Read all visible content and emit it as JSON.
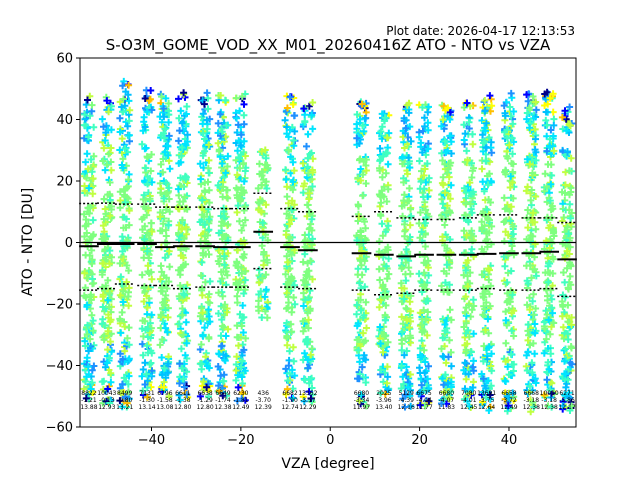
{
  "plot_date": "Plot date: 2026-04-17 12:13:53",
  "chart_data": {
    "type": "scatter",
    "title": "S-O3M_GOME_VOD_XX_M01_20260416Z ATO - NTO vs VZA",
    "xlabel": "VZA [degree]",
    "ylabel": "ATO - NTO [DU]",
    "xlim": [
      -56,
      55
    ],
    "ylim": [
      -60,
      60
    ],
    "xticks": [
      -40,
      -20,
      0,
      20,
      40
    ],
    "yticks": [
      -60,
      -40,
      -20,
      0,
      20,
      40,
      60
    ],
    "grid": false,
    "marker": "+",
    "palette": [
      "#00008b",
      "#0000ff",
      "#1e90ff",
      "#00bfff",
      "#00e5ff",
      "#40ffc0",
      "#7fff7f",
      "#c0ff40",
      "#ffff00",
      "#ffbf00"
    ],
    "zero_line": 0,
    "columns": [
      {
        "vza": -54,
        "count": "8822",
        "mean": "-1.21",
        "std": "13.88",
        "median": -1.2,
        "p_low": -15.5,
        "p_high": 12.7,
        "spread": 50
      },
      {
        "vza": -50,
        "count": "10043",
        "mean": "-0.13",
        "std": "12.93",
        "median": -0.5,
        "p_low": -15.0,
        "p_high": 12.8,
        "spread": 52
      },
      {
        "vza": -46,
        "count": "8499",
        "mean": "-0.80",
        "std": "13.21",
        "median": -0.5,
        "p_low": -13.5,
        "p_high": 12.5,
        "spread": 53
      },
      {
        "vza": -41,
        "count": "7131",
        "mean": "-1.30",
        "std": "13.14",
        "median": -0.5,
        "p_low": -14.0,
        "p_high": 12.5,
        "spread": 50
      },
      {
        "vza": -37,
        "count": "6796",
        "mean": "-1.58",
        "std": "13.08",
        "median": -1.5,
        "p_low": -14.0,
        "p_high": 11.5,
        "spread": 50
      },
      {
        "vza": -33,
        "count": "6611",
        "mean": "-1.38",
        "std": "12.80",
        "median": -1.2,
        "p_low": -15.0,
        "p_high": 11.5,
        "spread": 50
      },
      {
        "vza": -28,
        "count": "6638",
        "mean": "-1.29",
        "std": "12.80",
        "median": -1.2,
        "p_low": -14.5,
        "p_high": 11.5,
        "spread": 50
      },
      {
        "vza": -24,
        "count": "6649",
        "mean": "-1.74",
        "std": "12.38",
        "median": -1.5,
        "p_low": -14.5,
        "p_high": 11.0,
        "spread": 50
      },
      {
        "vza": -20,
        "count": "6230",
        "mean": "-1.81",
        "std": "12.49",
        "median": -1.5,
        "p_low": -14.5,
        "p_high": 11.0,
        "spread": 50
      },
      {
        "vza": -15,
        "count": "436",
        "mean": "-3.70",
        "std": "12.39",
        "median": 3.5,
        "p_low": -8.5,
        "p_high": 16.0,
        "spread": 28
      },
      {
        "vza": -9,
        "count": "6682",
        "mean": "-1.90",
        "std": "12.74",
        "median": -1.5,
        "p_low": -14.5,
        "p_high": 11.0,
        "spread": 50
      },
      {
        "vza": -5,
        "count": "13362",
        "mean": "-3.57",
        "std": "12.29",
        "median": -2.5,
        "p_low": -15.0,
        "p_high": 10.0,
        "spread": 50
      },
      {
        "vza": 7,
        "count": "6680",
        "mean": "-3.34",
        "std": "11.97",
        "median": -3.5,
        "p_low": -15.5,
        "p_high": 8.5,
        "spread": 50
      },
      {
        "vza": 12,
        "count": "2025",
        "mean": "-3.96",
        "std": "13.40",
        "median": -4.0,
        "p_low": -17.0,
        "p_high": 10.0,
        "spread": 46
      },
      {
        "vza": 17,
        "count": "5129",
        "mean": "-4.39",
        "std": "12.16",
        "median": -4.5,
        "p_low": -16.5,
        "p_high": 8.0,
        "spread": 50
      },
      {
        "vza": 21,
        "count": "6675",
        "mean": "-4.04",
        "std": "11.77",
        "median": -4.0,
        "p_low": -15.5,
        "p_high": 7.5,
        "spread": 50
      },
      {
        "vza": 26,
        "count": "6680",
        "mean": "-4.07",
        "std": "11.83",
        "median": -4.0,
        "p_low": -15.5,
        "p_high": 7.5,
        "spread": 50
      },
      {
        "vza": 31,
        "count": "7080",
        "mean": "-4.01",
        "std": "12.45",
        "median": -4.0,
        "p_low": -15.5,
        "p_high": 8.0,
        "spread": 50
      },
      {
        "vza": 35,
        "count": "13691",
        "mean": "-3.75",
        "std": "12.64",
        "median": -3.7,
        "p_low": -15.0,
        "p_high": 9.0,
        "spread": 52
      },
      {
        "vza": 40,
        "count": "6658",
        "mean": "-3.72",
        "std": "12.49",
        "median": -3.5,
        "p_low": -15.5,
        "p_high": 9.0,
        "spread": 52
      },
      {
        "vza": 45,
        "count": "6668",
        "mean": "-3.18",
        "std": "12.38",
        "median": -3.5,
        "p_low": -15.5,
        "p_high": 8.0,
        "spread": 52
      },
      {
        "vza": 49,
        "count": "10010",
        "mean": "-3.18",
        "std": "12.38",
        "median": -3.0,
        "p_low": -15.0,
        "p_high": 8.0,
        "spread": 52
      },
      {
        "vza": 53,
        "count": "6271",
        "mean": "-5.86",
        "std": "12.17",
        "median": -5.5,
        "p_low": -17.5,
        "p_high": 6.5,
        "spread": 50
      }
    ]
  }
}
